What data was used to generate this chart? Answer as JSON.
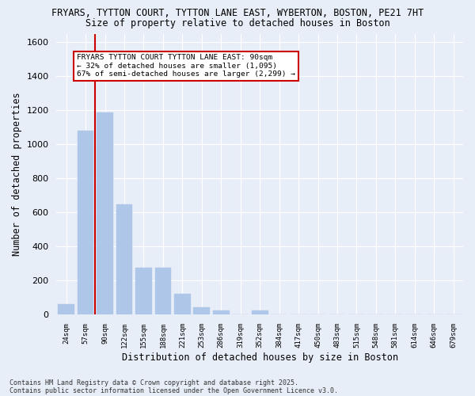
{
  "title1": "FRYARS, TYTTON COURT, TYTTON LANE EAST, WYBERTON, BOSTON, PE21 7HT",
  "title2": "Size of property relative to detached houses in Boston",
  "xlabel": "Distribution of detached houses by size in Boston",
  "ylabel": "Number of detached properties",
  "bar_color": "#aec6e8",
  "bar_edge_color": "#aec6e8",
  "vline_color": "#cc0000",
  "annotation_text": "FRYARS TYTTON COURT TYTTON LANE EAST: 90sqm\n← 32% of detached houses are smaller (1,095)\n67% of semi-detached houses are larger (2,299) →",
  "annotation_box_edgecolor": "#cc0000",
  "categories": [
    "24sqm",
    "57sqm",
    "90sqm",
    "122sqm",
    "155sqm",
    "188sqm",
    "221sqm",
    "253sqm",
    "286sqm",
    "319sqm",
    "352sqm",
    "384sqm",
    "417sqm",
    "450sqm",
    "483sqm",
    "515sqm",
    "548sqm",
    "581sqm",
    "614sqm",
    "646sqm",
    "679sqm"
  ],
  "values": [
    60,
    1080,
    1185,
    645,
    275,
    275,
    120,
    40,
    25,
    0,
    25,
    0,
    0,
    0,
    0,
    0,
    0,
    0,
    0,
    0,
    0
  ],
  "ylim": [
    0,
    1650
  ],
  "yticks": [
    0,
    200,
    400,
    600,
    800,
    1000,
    1200,
    1400,
    1600
  ],
  "background_color": "#e8eef8",
  "grid_color": "#ffffff",
  "footer1": "Contains HM Land Registry data © Crown copyright and database right 2025.",
  "footer2": "Contains public sector information licensed under the Open Government Licence v3.0."
}
